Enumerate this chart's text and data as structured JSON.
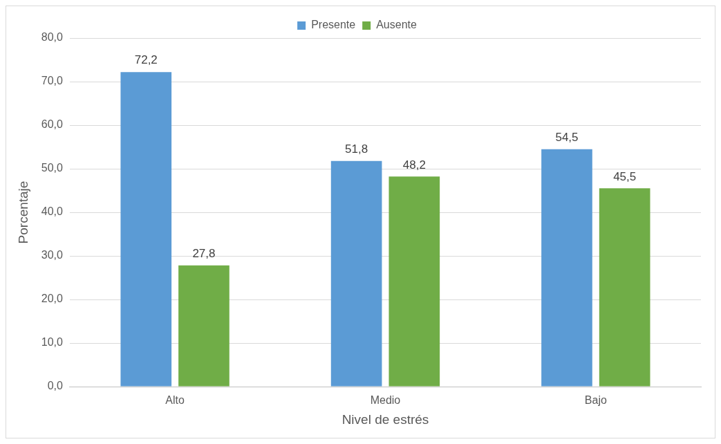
{
  "chart_data": {
    "type": "bar",
    "xlabel": "Nivel de estrés",
    "ylabel": "Porcentaje",
    "categories": [
      "Alto",
      "Medio",
      "Bajo"
    ],
    "series": [
      {
        "name": "Presente",
        "color": "#5b9bd5",
        "values": [
          72.2,
          51.8,
          54.5
        ],
        "value_labels": [
          "72,2",
          "51,8",
          "54,5"
        ]
      },
      {
        "name": "Ausente",
        "color": "#70ad47",
        "values": [
          27.8,
          48.2,
          45.5
        ],
        "value_labels": [
          "27,8",
          "48,2",
          "45,5"
        ]
      }
    ],
    "ylim": [
      0,
      80
    ],
    "yticks": [
      {
        "value": 0,
        "label": "0,0"
      },
      {
        "value": 10,
        "label": "10,0"
      },
      {
        "value": 20,
        "label": "20,0"
      },
      {
        "value": 30,
        "label": "30,0"
      },
      {
        "value": 40,
        "label": "40,0"
      },
      {
        "value": 50,
        "label": "50,0"
      },
      {
        "value": 60,
        "label": "60,0"
      },
      {
        "value": 70,
        "label": "70,0"
      },
      {
        "value": 80,
        "label": "80,0"
      }
    ],
    "grid": "y",
    "legend": "top"
  }
}
